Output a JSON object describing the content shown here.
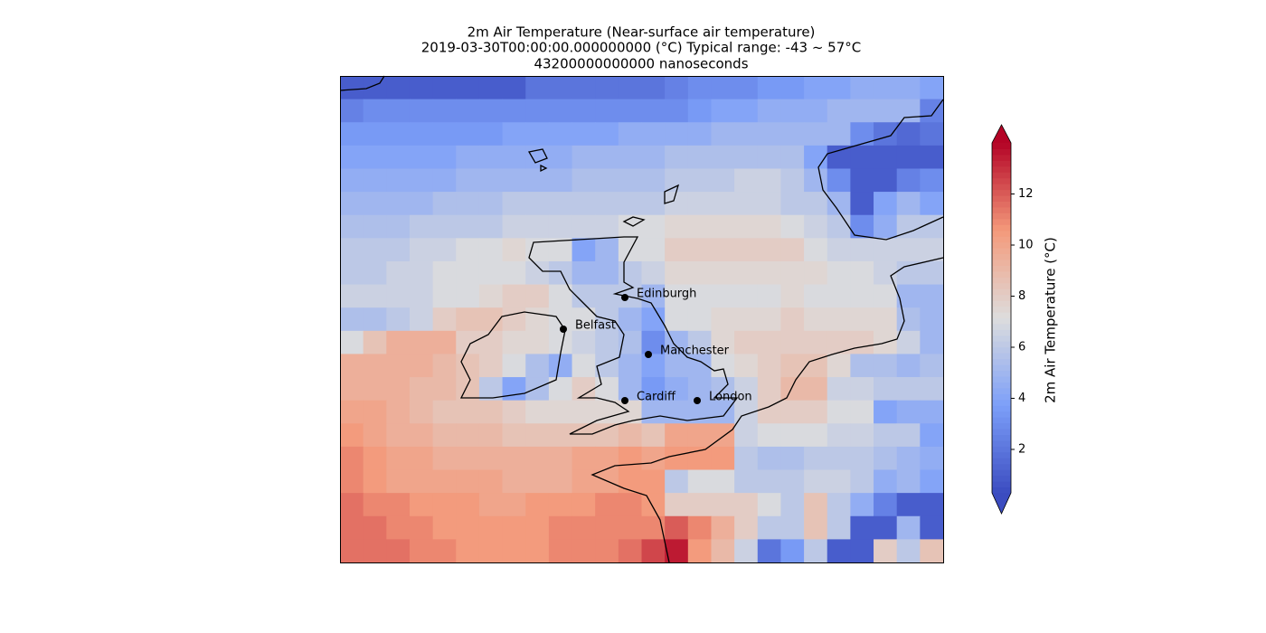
{
  "chart_data": {
    "type": "heatmap",
    "title_lines": [
      "2m Air Temperature (Near-surface air temperature)",
      "2019-03-30T00:00:00.000000000 (°C) Typical range: -43 ~ 57°C",
      "43200000000000 nanoseconds"
    ],
    "colormap": "coolwarm",
    "clim": [
      0.3,
      14
    ],
    "colorbar_ticks": [
      2,
      4,
      6,
      8,
      10,
      12
    ],
    "colorbar_label": "2m Air Temperature (°C)",
    "cities": [
      "Edinburgh",
      "Belfast",
      "Manchester",
      "Cardiff",
      "London"
    ],
    "values": [
      [
        1,
        1,
        1,
        1,
        1,
        1,
        1,
        1,
        2,
        2,
        2,
        2,
        2,
        2,
        2.5,
        3,
        3,
        3,
        3.5,
        3.5,
        4,
        4,
        4.5,
        4.5,
        4.5,
        4
      ],
      [
        2.5,
        3,
        3,
        3,
        3,
        3,
        3,
        3,
        3,
        3,
        3,
        3,
        3,
        3,
        3,
        3.5,
        4,
        4,
        4.5,
        4.5,
        4.5,
        5,
        5,
        5,
        5,
        2.5
      ],
      [
        3.5,
        3.5,
        3.5,
        3.5,
        3.5,
        3.5,
        3.5,
        4,
        4,
        4,
        4,
        4,
        4.5,
        4.5,
        4.5,
        4.5,
        5,
        5,
        5,
        5,
        5,
        5,
        3,
        2,
        1.5,
        2
      ],
      [
        4,
        4,
        4,
        4,
        4,
        4.5,
        4.5,
        4.5,
        4.5,
        4.5,
        5,
        5,
        5,
        5,
        5.5,
        5.5,
        5.5,
        5.5,
        5.5,
        5.5,
        4,
        1,
        1,
        1,
        1,
        1
      ],
      [
        4.5,
        4.5,
        4.5,
        4.5,
        4.5,
        5,
        5,
        5,
        5,
        5,
        5.5,
        5.5,
        5.5,
        5.5,
        6,
        6,
        6,
        6.5,
        6.5,
        6,
        5,
        3,
        1,
        1,
        2.5,
        3
      ],
      [
        5,
        5,
        5,
        5,
        5.5,
        5.5,
        5.5,
        6,
        6,
        6,
        6,
        6,
        6,
        6,
        6.5,
        6.5,
        6.5,
        6.5,
        6.5,
        6,
        6,
        5,
        1,
        4,
        5,
        4
      ],
      [
        5.5,
        5.5,
        5.5,
        6,
        6,
        6,
        6,
        6.5,
        6.5,
        6.5,
        6.5,
        6.5,
        7,
        7,
        7.5,
        7.5,
        7.5,
        7.5,
        7.5,
        7,
        6.5,
        6,
        3,
        4.5,
        6,
        6
      ],
      [
        6,
        6,
        6,
        6.5,
        6.5,
        7,
        7,
        7.5,
        7,
        7,
        4,
        5,
        7,
        7,
        8,
        8,
        8,
        8,
        8,
        8,
        7,
        6.5,
        6.5,
        6.5,
        6.5,
        6.5
      ],
      [
        6,
        6,
        6.5,
        6.5,
        7,
        7,
        7,
        7,
        6.5,
        6,
        5,
        5,
        6,
        6.5,
        7.5,
        7.5,
        7.5,
        7.5,
        7.5,
        7.5,
        7.5,
        7,
        7,
        6.5,
        6,
        6
      ],
      [
        6.5,
        6.5,
        6.5,
        6.5,
        7,
        7,
        7.5,
        8,
        8,
        7,
        6,
        6,
        6,
        5,
        7,
        7,
        7,
        7,
        7,
        7.5,
        7,
        7,
        7,
        7,
        5,
        5
      ],
      [
        5.5,
        5.5,
        6,
        6.5,
        8,
        8.5,
        8.5,
        8,
        7.5,
        7,
        7,
        6,
        5,
        4,
        7,
        7,
        7.5,
        7.5,
        7.5,
        8,
        7.5,
        7.5,
        7.5,
        7.5,
        5.5,
        5
      ],
      [
        7,
        8.5,
        9.5,
        9.5,
        9.5,
        8,
        8,
        7.5,
        7.5,
        7,
        6.5,
        6,
        5.5,
        3,
        5,
        6,
        7.5,
        8,
        8,
        8,
        8,
        8,
        8,
        7.5,
        6.5,
        5
      ],
      [
        9.5,
        9.5,
        9.5,
        9.5,
        9,
        8.5,
        8,
        7,
        5.5,
        4.5,
        7,
        6,
        5,
        4,
        5,
        5,
        7,
        7.5,
        8,
        8.5,
        8.5,
        7.5,
        5.5,
        5.5,
        5,
        5.5
      ],
      [
        9.5,
        9.5,
        9.5,
        9,
        9,
        8.5,
        6,
        4,
        5.5,
        7,
        8,
        7,
        5,
        3.5,
        4.5,
        5,
        5.5,
        6.5,
        8,
        9,
        9,
        6.5,
        6.5,
        6,
        6,
        6
      ],
      [
        10,
        10,
        9.5,
        9,
        8.5,
        8.5,
        8.5,
        8,
        7.5,
        7.5,
        7.5,
        7.5,
        7.5,
        5,
        5,
        5,
        5,
        6.5,
        8,
        8,
        8,
        7,
        7,
        4,
        4.5,
        4.5
      ],
      [
        10.5,
        10,
        9.5,
        9.5,
        9,
        9,
        9,
        8.5,
        8.5,
        8.5,
        8.5,
        8.5,
        9,
        8.5,
        10,
        10,
        10,
        6.5,
        7,
        7,
        7,
        6.5,
        6.5,
        6,
        6,
        4
      ],
      [
        11,
        10.5,
        10,
        10,
        9.5,
        9.5,
        9.5,
        9.5,
        9.5,
        9.5,
        10,
        10,
        10.5,
        10,
        10.5,
        10.5,
        10.5,
        6,
        5.5,
        5.5,
        6,
        6,
        6,
        5.5,
        5,
        4.5
      ],
      [
        11,
        10.5,
        10,
        10,
        10,
        10,
        10,
        9.5,
        9.5,
        9.5,
        10,
        10,
        10.5,
        10.5,
        6,
        7,
        7,
        6,
        6,
        6,
        6.5,
        6.5,
        6,
        4.5,
        5,
        4
      ],
      [
        11.5,
        11,
        11,
        10.5,
        10.5,
        10.5,
        10,
        10,
        10.5,
        10.5,
        10.5,
        11,
        11,
        10.5,
        8,
        8,
        8,
        8,
        7,
        6,
        8.5,
        6,
        4.5,
        2.5,
        1,
        1
      ],
      [
        11.5,
        11.5,
        11,
        11,
        10.5,
        10.5,
        10.5,
        10.5,
        10.5,
        11,
        11,
        11,
        11,
        11,
        12,
        11,
        9.5,
        8,
        6,
        6,
        8.5,
        6,
        1,
        1,
        5,
        1
      ],
      [
        11.5,
        11.5,
        11.5,
        11,
        11,
        10.5,
        10.5,
        10.5,
        10.5,
        11,
        11,
        11,
        11.5,
        12.5,
        13.5,
        10.5,
        9,
        6.5,
        2,
        3.5,
        6,
        1,
        1,
        8,
        6,
        8.5
      ]
    ]
  }
}
